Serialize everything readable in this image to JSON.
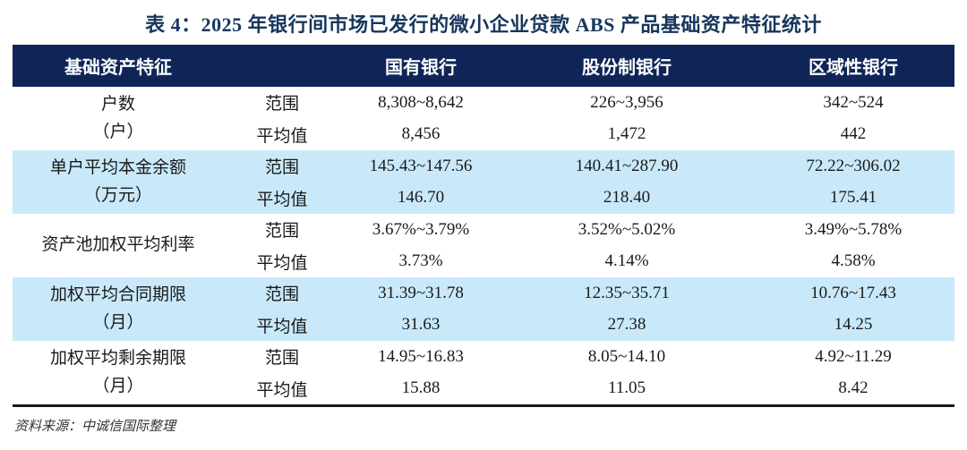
{
  "title": "表 4：2025 年银行间市场已发行的微小企业贷款 ABS 产品基础资产特征统计",
  "table": {
    "header": {
      "feature": "基础资产特征",
      "columns": [
        "国有银行",
        "股份制银行",
        "区域性银行"
      ]
    },
    "row_labels": {
      "range": "范围",
      "average": "平均值"
    },
    "rows": [
      {
        "name": "户数",
        "unit": "（户）",
        "range": [
          "8,308~8,642",
          "226~3,956",
          "342~524"
        ],
        "average": [
          "8,456",
          "1,472",
          "442"
        ]
      },
      {
        "name": "单户平均本金余额",
        "unit": "（万元）",
        "range": [
          "145.43~147.56",
          "140.41~287.90",
          "72.22~306.02"
        ],
        "average": [
          "146.70",
          "218.40",
          "175.41"
        ]
      },
      {
        "name": "资产池加权平均利率",
        "unit": "",
        "range": [
          "3.67%~3.79%",
          "3.52%~5.02%",
          "3.49%~5.78%"
        ],
        "average": [
          "3.73%",
          "4.14%",
          "4.58%"
        ]
      },
      {
        "name": "加权平均合同期限",
        "unit": "（月）",
        "range": [
          "31.39~31.78",
          "12.35~35.71",
          "10.76~17.43"
        ],
        "average": [
          "31.63",
          "27.38",
          "14.25"
        ]
      },
      {
        "name": "加权平均剩余期限",
        "unit": "（月）",
        "range": [
          "14.95~16.83",
          "8.05~14.10",
          "4.92~11.29"
        ],
        "average": [
          "15.88",
          "11.05",
          "8.42"
        ]
      }
    ]
  },
  "footer": {
    "source": "资料来源：中诚信国际整理"
  },
  "colors": {
    "header_bg": "#0F2557",
    "highlight_row": "#C9E9FA",
    "title": "#17365D"
  }
}
